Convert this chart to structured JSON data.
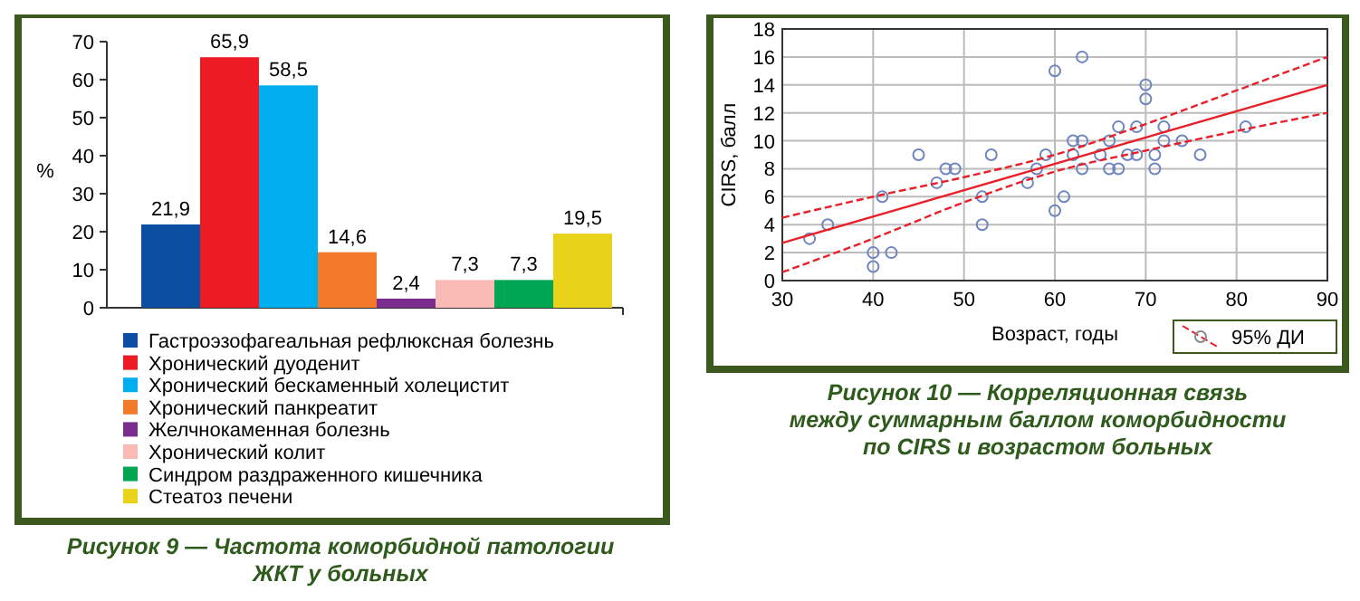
{
  "chart_data": [
    {
      "type": "bar",
      "ylabel": "%",
      "categories": [
        null
      ],
      "ylim": [
        0,
        70
      ],
      "yticks": [
        0,
        10,
        20,
        30,
        40,
        50,
        60,
        70
      ],
      "grid": false,
      "legend": "bottom",
      "annotations": [
        "Рисунок 9 — Частота коморбидной патологии",
        "ЖКТ у больных"
      ],
      "series": [
        {
          "name": "Гастроэзофагеальная рефлюксная болезнь",
          "color": "#0b4ea2",
          "values": [
            21.9
          ],
          "value_labels": [
            "21,9"
          ]
        },
        {
          "name": "Хронический дуоденит",
          "color": "#ed1c24",
          "values": [
            65.9
          ],
          "value_labels": [
            "65,9"
          ]
        },
        {
          "name": "Хронический бескаменный холецистит",
          "color": "#00aeef",
          "values": [
            58.5
          ],
          "value_labels": [
            "58,5"
          ]
        },
        {
          "name": "Хронический панкреатит",
          "color": "#f37a2a",
          "values": [
            14.6
          ],
          "value_labels": [
            "14,6"
          ]
        },
        {
          "name": "Желчнокаменная болезнь",
          "color": "#7b2d8e",
          "values": [
            2.4
          ],
          "value_labels": [
            "2,4"
          ]
        },
        {
          "name": "Хронический колит",
          "color": "#f9b9b4",
          "values": [
            7.3
          ],
          "value_labels": [
            "7,3"
          ]
        },
        {
          "name": "Синдром раздраженного кишечника",
          "color": "#00a651",
          "values": [
            7.3
          ],
          "value_labels": [
            "7,3"
          ]
        },
        {
          "name": "Стеатоз печени",
          "color": "#e8d21a",
          "values": [
            19.5
          ],
          "value_labels": [
            "19,5"
          ]
        }
      ]
    },
    {
      "type": "scatter",
      "xlabel": "Возраст, годы",
      "ylabel": "CIRS, балл",
      "xlim": [
        30,
        90
      ],
      "xticks": [
        30,
        40,
        50,
        60,
        70,
        80,
        90
      ],
      "ylim": [
        0,
        18
      ],
      "yticks": [
        0,
        2,
        4,
        6,
        8,
        10,
        12,
        14,
        16,
        18
      ],
      "grid": true,
      "legend": "bottom right",
      "annotations": [
        "Рисунок 10 — Корреляционная связь",
        "между суммарным баллом коморбидности",
        "по CIRS и возрастом больных"
      ],
      "series": [
        {
          "type": "scatter",
          "marker": "circle",
          "color": "#6f85c0",
          "x": [
            33,
            35,
            40,
            40,
            42,
            41,
            45,
            47,
            48,
            49,
            53,
            52,
            52,
            57,
            58,
            59,
            60,
            60,
            61,
            62,
            62,
            63,
            63,
            63,
            65,
            66,
            66,
            67,
            67,
            68,
            69,
            69,
            70,
            70,
            71,
            71,
            72,
            72,
            74,
            76,
            81
          ],
          "values": [
            3,
            4,
            2,
            1,
            2,
            6,
            9,
            7,
            8,
            8,
            9,
            6,
            4,
            7,
            8,
            9,
            15,
            5,
            6,
            10,
            9,
            16,
            10,
            8,
            9,
            10,
            8,
            8,
            11,
            9,
            9,
            11,
            14,
            13,
            9,
            8,
            11,
            10,
            10,
            9,
            11
          ]
        },
        {
          "type": "line",
          "line_style": "solid",
          "color": "#e8202a",
          "x": [
            30,
            90
          ],
          "values": [
            2.7,
            14
          ]
        },
        {
          "type": "line",
          "line_style": "dashed",
          "name": "95% ДИ",
          "color": "#e8202a",
          "x": [
            30,
            40,
            50,
            60,
            70,
            80,
            90
          ],
          "values": [
            4.5,
            6,
            7.4,
            9,
            11.2,
            13.6,
            16
          ]
        },
        {
          "type": "line",
          "line_style": "dashed",
          "color": "#e8202a",
          "x": [
            30,
            40,
            50,
            60,
            70,
            80,
            90
          ],
          "values": [
            0.6,
            3,
            5.6,
            7.8,
            9.3,
            10.7,
            12
          ]
        }
      ]
    }
  ]
}
